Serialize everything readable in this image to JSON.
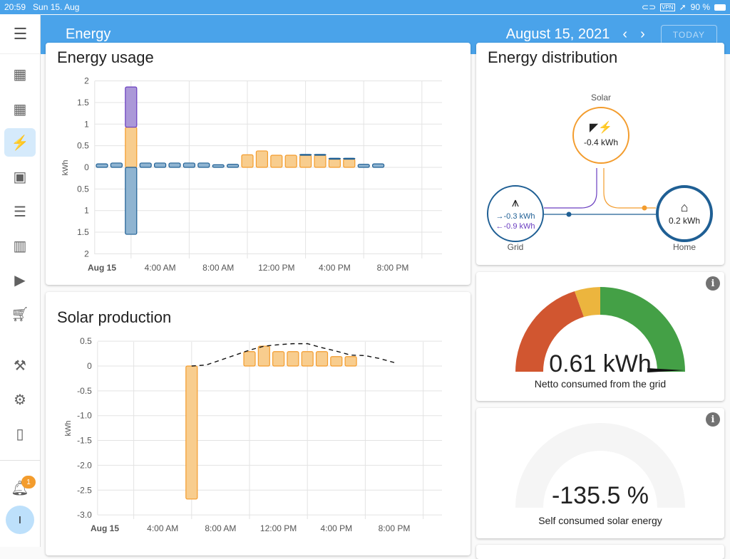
{
  "status_bar": {
    "time": "20:59",
    "date": "Sun 15. Aug",
    "vpn": "VPN",
    "battery": "90 %"
  },
  "header": {
    "title": "Energy",
    "date": "August 15, 2021",
    "today_label": "TODAY"
  },
  "sidebar": {
    "notification_count": "1",
    "avatar_initial": "I"
  },
  "colors": {
    "accent": "#4aa3ea",
    "grid": "#1f5f94",
    "grid_fill": "#8fb4d1",
    "solar": "#f39c2d",
    "solar_fill": "#f8cd8e",
    "return": "#6a3ec0",
    "return_fill": "#ab98d8",
    "red": "#d15630",
    "yellow": "#ecb53e",
    "green": "#44a046"
  },
  "energy_usage": {
    "title": "Energy usage"
  },
  "solar_production": {
    "title": "Solar production"
  },
  "distribution": {
    "title": "Energy distribution",
    "solar_label": "Solar",
    "solar_value": "-0.4 kWh",
    "grid_label": "Grid",
    "grid_in": "→-0.3 kWh",
    "grid_out": "←-0.9 kWh",
    "home_label": "Home",
    "home_value": "0.2 kWh"
  },
  "gauge_grid": {
    "value": "0.61 kWh",
    "label": "Netto consumed from the grid",
    "needle_fraction": 0.98
  },
  "gauge_self": {
    "value": "-135.5 %",
    "label": "Self consumed solar energy"
  },
  "chart_data": [
    {
      "type": "bar",
      "title": "Energy usage",
      "ylabel": "kWh",
      "ylim": [
        -2,
        2
      ],
      "yticks": [
        "2",
        "1.5",
        "1",
        "0.5",
        "0",
        "0.5",
        "1",
        "1.5",
        "2"
      ],
      "xticks": [
        "Aug 15",
        "4:00 AM",
        "8:00 AM",
        "12:00 PM",
        "4:00 PM",
        "8:00 PM"
      ],
      "hours": [
        0,
        1,
        2,
        3,
        4,
        5,
        6,
        7,
        8,
        9,
        10,
        11,
        12,
        13,
        14,
        15,
        16,
        17,
        18,
        19
      ],
      "series": [
        {
          "name": "grid",
          "values": [
            0.08,
            0.1,
            0,
            0.1,
            0.1,
            0.1,
            0.1,
            0.1,
            0.06,
            0.07,
            0,
            0,
            0,
            0,
            0.02,
            0.02,
            0.02,
            0.02,
            0.07,
            0.08
          ]
        },
        {
          "name": "solar",
          "values": [
            0,
            0,
            0.93,
            0,
            0,
            0,
            0,
            0,
            0,
            0,
            0.29,
            0.38,
            0.28,
            0.28,
            0.28,
            0.28,
            0.19,
            0.19,
            0,
            0
          ]
        },
        {
          "name": "grid_return_stack",
          "values": [
            0,
            0,
            0.93,
            0,
            0,
            0,
            0,
            0,
            0,
            0,
            0,
            0,
            0,
            0,
            0,
            0,
            0,
            0,
            0,
            0
          ]
        },
        {
          "name": "returned",
          "values": [
            0,
            0,
            -1.55,
            0,
            0,
            0,
            0,
            0,
            0,
            0,
            0,
            0,
            0,
            0,
            0,
            0,
            0,
            0,
            0,
            0
          ]
        }
      ]
    },
    {
      "type": "bar",
      "title": "Solar production",
      "ylabel": "kWh",
      "ylim": [
        -3,
        0.5
      ],
      "yticks": [
        "0.5",
        "0",
        "-0.5",
        "-1.0",
        "-1.5",
        "-2.0",
        "-2.5",
        "-3.0"
      ],
      "xticks": [
        "Aug 15",
        "4:00 AM",
        "8:00 AM",
        "12:00 PM",
        "4:00 PM",
        "8:00 PM"
      ],
      "bars": {
        "hours": [
          6,
          10,
          11,
          12,
          13,
          14,
          15,
          16,
          17
        ],
        "values": [
          -2.68,
          0.29,
          0.4,
          0.29,
          0.29,
          0.29,
          0.29,
          0.19,
          0.19
        ]
      },
      "forecast": {
        "hours": [
          6,
          7,
          8,
          9,
          10,
          11,
          12,
          13,
          14,
          15,
          16,
          17,
          18,
          19,
          20
        ],
        "values": [
          0,
          0.02,
          0.12,
          0.22,
          0.32,
          0.4,
          0.43,
          0.45,
          0.45,
          0.37,
          0.3,
          0.22,
          0.21,
          0.15,
          0.07
        ]
      }
    }
  ]
}
